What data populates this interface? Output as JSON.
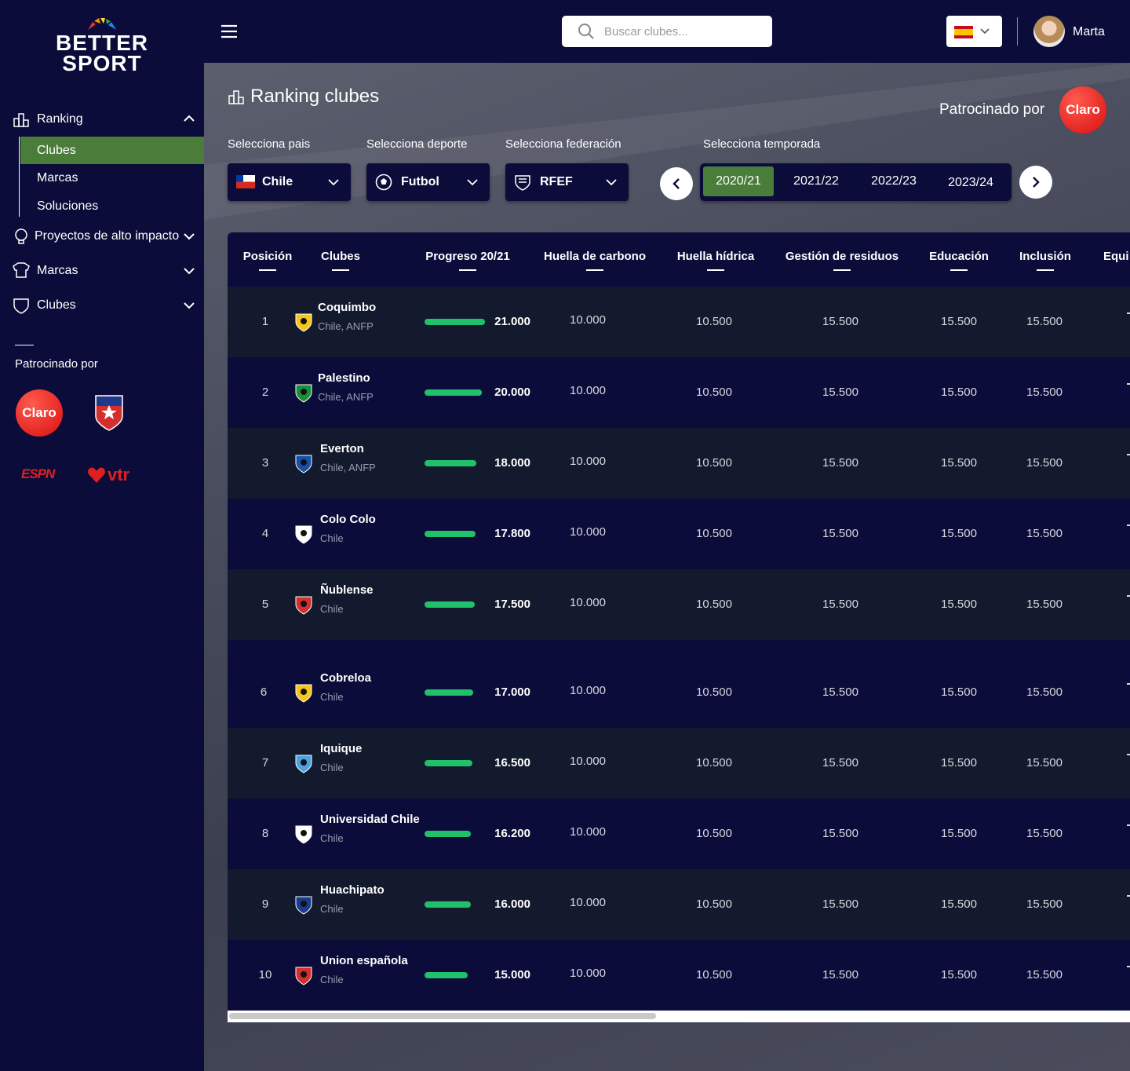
{
  "sidebar": {
    "logo": [
      "BETTER",
      "SPORT"
    ],
    "nav": [
      {
        "label": "Ranking",
        "children": [
          "Clubes",
          "Marcas",
          "Soluciones"
        ]
      },
      {
        "label": "Proyectos de alto impacto"
      },
      {
        "label": "Marcas"
      },
      {
        "label": "Clubes"
      }
    ],
    "sponsors_title": "Patrocinado por",
    "sponsors": [
      "Claro",
      "ESPN",
      "vtr"
    ]
  },
  "topbar": {
    "search_placeholder": "Buscar clubes...",
    "user": "Marta"
  },
  "page": {
    "title": "Ranking clubes",
    "sponsored_by": "Patrocinado por",
    "sponsor": "Claro"
  },
  "filters": [
    {
      "label": "Selecciona pais",
      "value": "Chile"
    },
    {
      "label": "Selecciona deporte",
      "value": "Futbol"
    },
    {
      "label": "Selecciona federación",
      "value": "RFEF"
    }
  ],
  "season": {
    "label": "Selecciona temporada",
    "options": [
      "2020/21",
      "2021/22",
      "2022/23",
      "2023/24"
    ]
  },
  "table": {
    "columns": [
      "Posición",
      "Clubes",
      "Progreso 20/21",
      "Huella de carbono",
      "Huella hídrica",
      "Gestión de residuos",
      "Educación",
      "Inclusión",
      "Equi"
    ],
    "rows": [
      {
        "position": 1,
        "club": "Coquimbo",
        "location": "Chile, ANFP",
        "progress": {
          "value": 21000,
          "label": "21.000"
        },
        "scores": [
          "10.000",
          "10.500",
          "15.500",
          "15.500",
          "15.500"
        ]
      },
      {
        "position": 2,
        "club": "Palestino",
        "location": "Chile, ANFP",
        "progress": {
          "value": 20000,
          "label": "20.000"
        },
        "scores": [
          "10.000",
          "10.500",
          "15.500",
          "15.500",
          "15.500"
        ]
      },
      {
        "position": 3,
        "club": "Everton",
        "location": "Chile, ANFP",
        "progress": {
          "value": 18000,
          "label": "18.000"
        },
        "scores": [
          "10.000",
          "10.500",
          "15.500",
          "15.500",
          "15.500"
        ]
      },
      {
        "position": 4,
        "club": "Colo Colo",
        "location": "Chile",
        "progress": {
          "value": 17800,
          "label": "17.800"
        },
        "scores": [
          "10.000",
          "10.500",
          "15.500",
          "15.500",
          "15.500"
        ]
      },
      {
        "position": 5,
        "club": "Ñublense",
        "location": "Chile",
        "progress": {
          "value": 17500,
          "label": "17.500"
        },
        "scores": [
          "10.000",
          "10.500",
          "15.500",
          "15.500",
          "15.500"
        ]
      },
      {
        "position": 6,
        "club": "Cobreloa",
        "location": "Chile",
        "progress": {
          "value": 17000,
          "label": "17.000"
        },
        "scores": [
          "10.000",
          "10.500",
          "15.500",
          "15.500",
          "15.500"
        ]
      },
      {
        "position": 7,
        "club": "Iquique",
        "location": "Chile",
        "progress": {
          "value": 16500,
          "label": "16.500"
        },
        "scores": [
          "10.000",
          "10.500",
          "15.500",
          "15.500",
          "15.500"
        ]
      },
      {
        "position": 8,
        "club": "Universidad Chile",
        "location": "Chile",
        "progress": {
          "value": 16200,
          "label": "16.200"
        },
        "scores": [
          "10.000",
          "10.500",
          "15.500",
          "15.500",
          "15.500"
        ]
      },
      {
        "position": 9,
        "club": "Huachipato",
        "location": "Chile",
        "progress": {
          "value": 16000,
          "label": "16.000"
        },
        "scores": [
          "10.000",
          "10.500",
          "15.500",
          "15.500",
          "15.500"
        ]
      },
      {
        "position": 10,
        "club": "Union española",
        "location": "Chile",
        "progress": {
          "value": 15000,
          "label": "15.000"
        },
        "scores": [
          "10.000",
          "10.500",
          "15.500",
          "15.500",
          "15.500"
        ]
      }
    ]
  }
}
